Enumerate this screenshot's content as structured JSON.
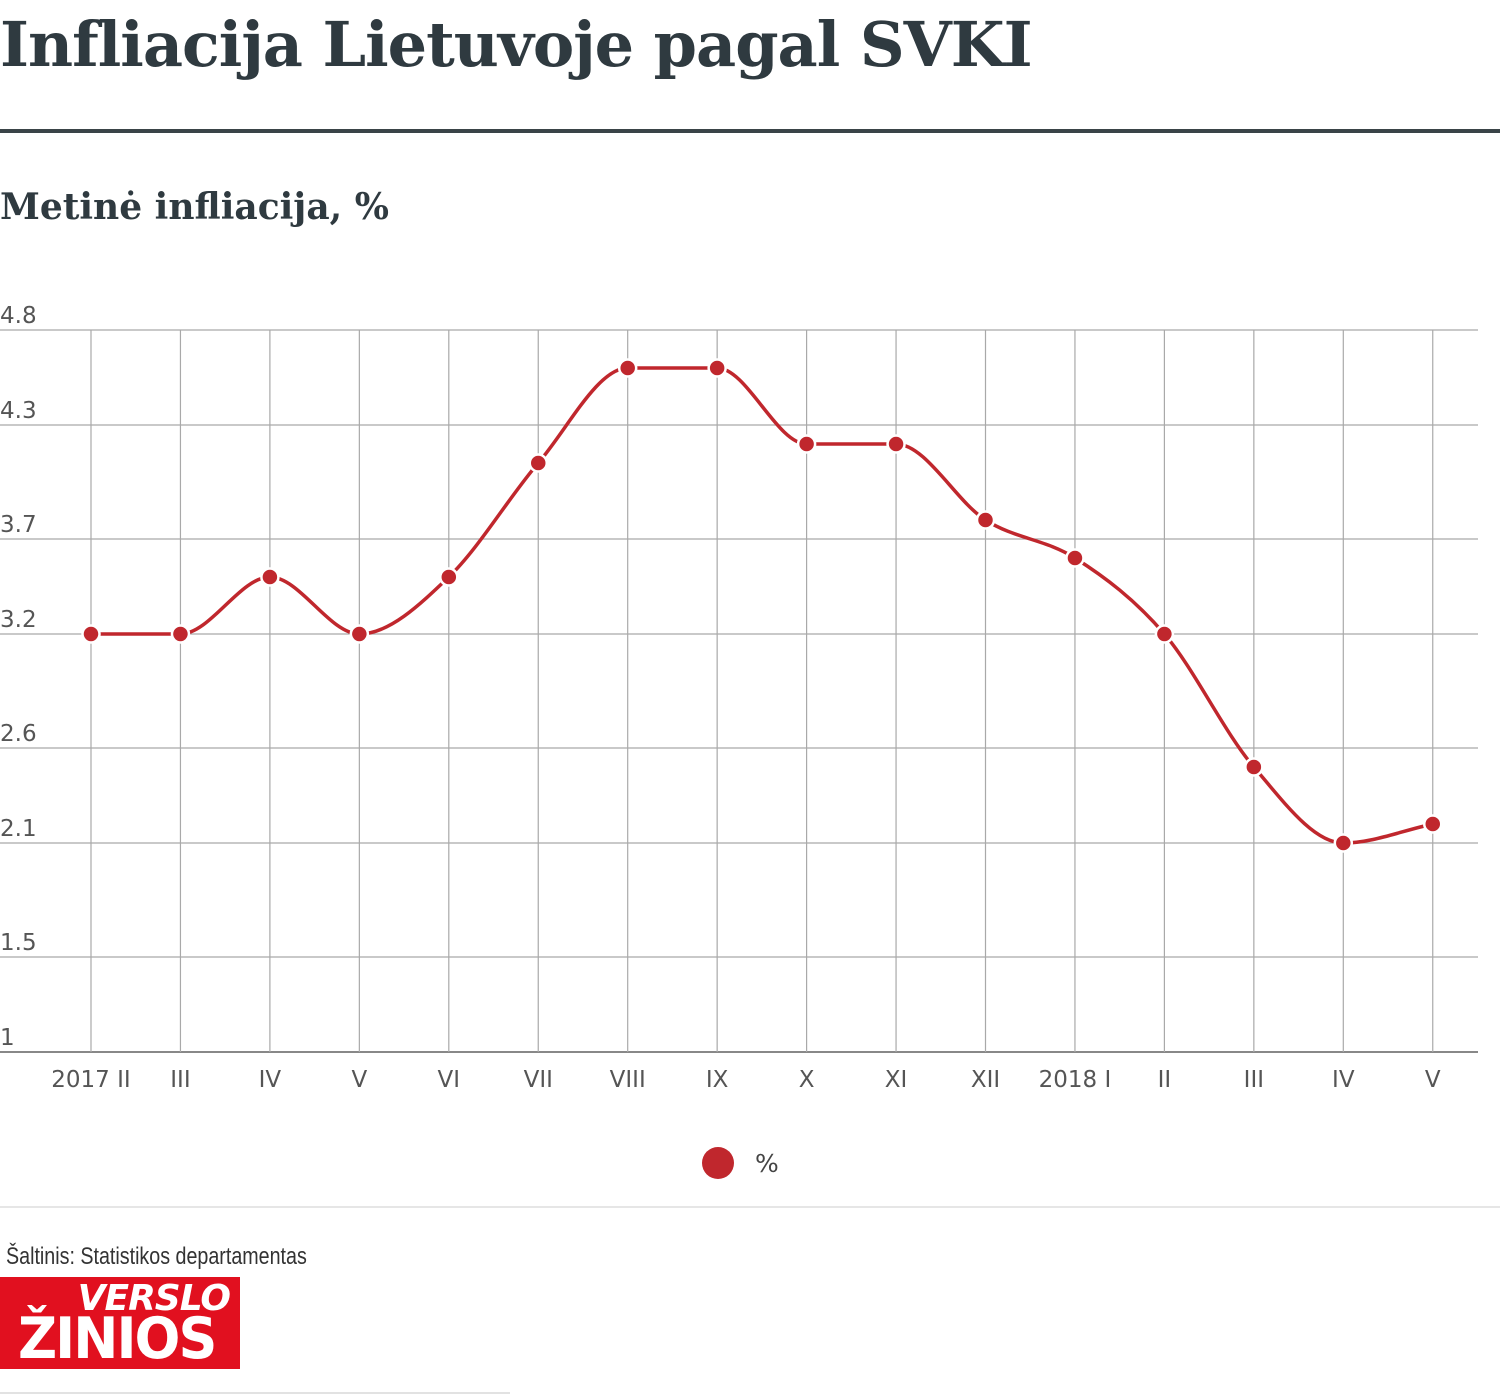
{
  "header": {
    "title": "Infliacija Lietuvoje pagal SVKI",
    "subtitle": "Metinė infliacija, %"
  },
  "chart_data": {
    "type": "line",
    "title": "Infliacija Lietuvoje pagal SVKI",
    "subtitle": "Metinė infliacija, %",
    "xlabel": "",
    "ylabel": "",
    "categories": [
      "2017 II",
      "III",
      "IV",
      "V",
      "VI",
      "VII",
      "VIII",
      "IX",
      "X",
      "XI",
      "XII",
      "2018 I",
      "II",
      "III",
      "IV",
      "V"
    ],
    "series": [
      {
        "name": "%",
        "values": [
          3.2,
          3.2,
          3.5,
          3.2,
          3.5,
          4.1,
          4.6,
          4.6,
          4.2,
          4.2,
          3.8,
          3.6,
          3.2,
          2.5,
          2.1,
          2.2
        ]
      }
    ],
    "yticks": [
      "1",
      "1.5",
      "2.1",
      "2.6",
      "3.2",
      "3.7",
      "4.3",
      "4.8"
    ],
    "ylim": [
      1,
      4.8
    ],
    "grid": true,
    "smooth": true,
    "legend_position": "bottom-center",
    "colors": {
      "line": "#c0272d",
      "grid": "#a9a9a9",
      "axis": "#888888"
    }
  },
  "legend": {
    "label": "%"
  },
  "footer": {
    "source": "Šaltinis: Statistikos departamentas",
    "logo_top": "VERSLO",
    "logo_bottom": "ŽINIOS"
  }
}
